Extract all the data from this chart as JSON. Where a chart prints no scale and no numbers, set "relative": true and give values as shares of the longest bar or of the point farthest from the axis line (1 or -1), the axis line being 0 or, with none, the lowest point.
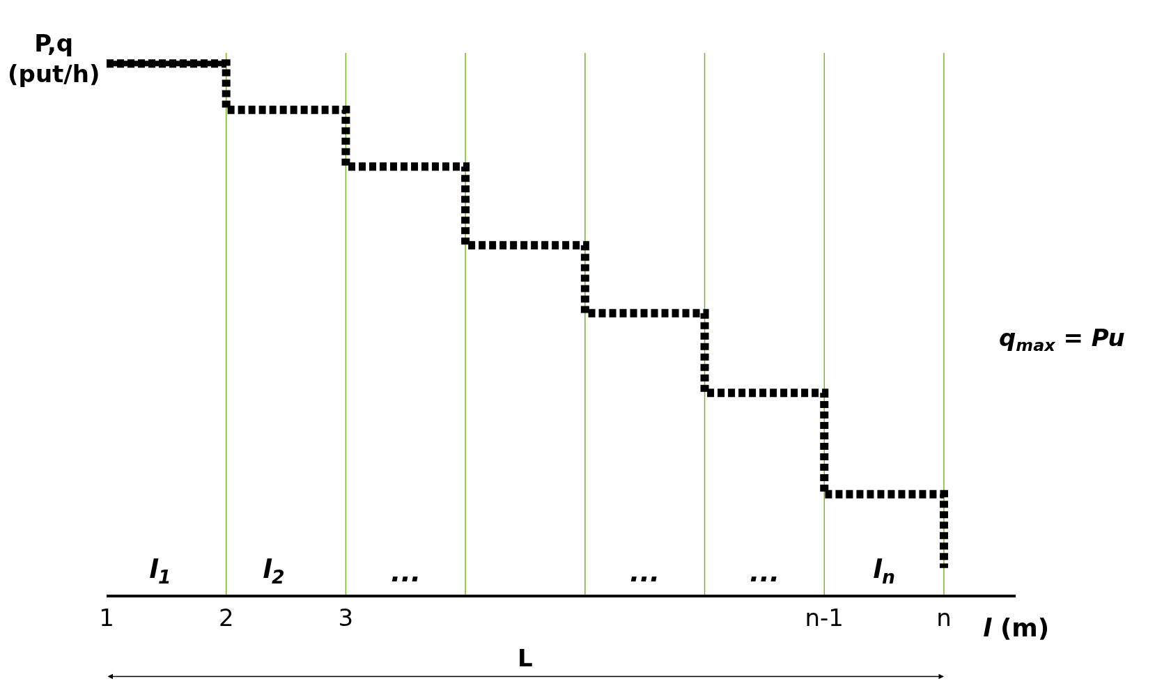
{
  "chart_data": {
    "type": "line",
    "relative": true,
    "xlabel": "l (m)",
    "ylabel": "P,q\n(put/h)",
    "categories": [
      "1",
      "2",
      "3",
      null,
      null,
      null,
      "n-1",
      "n"
    ],
    "grid": "x",
    "marker": "none",
    "series": [
      {
        "color": "#000000",
        "line_style": "solid",
        "values": [
          1,
          1,
          null,
          null,
          null,
          null,
          null,
          null
        ]
      },
      {
        "type": "step",
        "color": "#000000",
        "line_style": "dotted",
        "values": [
          1,
          0.913,
          0.806,
          0.658,
          0.53,
          0.38,
          0.189,
          0.05
        ]
      }
    ],
    "annotations": [
      "l$_{1}$",
      "l$_{2}$",
      "...",
      "...",
      "...",
      "l$_{n}$",
      "q$_{max}$ = Pu",
      "L"
    ]
  }
}
